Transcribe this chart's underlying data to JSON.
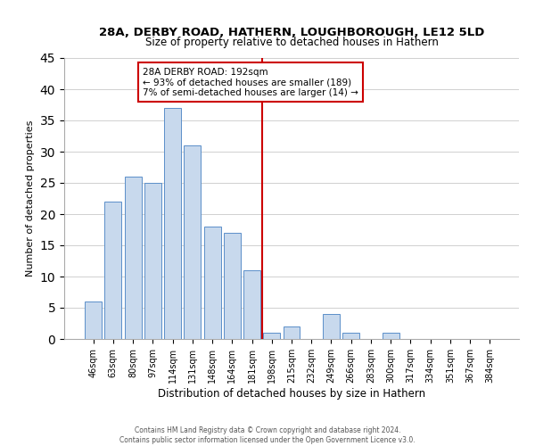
{
  "title": "28A, DERBY ROAD, HATHERN, LOUGHBOROUGH, LE12 5LD",
  "subtitle": "Size of property relative to detached houses in Hathern",
  "xlabel": "Distribution of detached houses by size in Hathern",
  "ylabel": "Number of detached properties",
  "bin_labels": [
    "46sqm",
    "63sqm",
    "80sqm",
    "97sqm",
    "114sqm",
    "131sqm",
    "148sqm",
    "164sqm",
    "181sqm",
    "198sqm",
    "215sqm",
    "232sqm",
    "249sqm",
    "266sqm",
    "283sqm",
    "300sqm",
    "317sqm",
    "334sqm",
    "351sqm",
    "367sqm",
    "384sqm"
  ],
  "bar_values": [
    6,
    22,
    26,
    25,
    37,
    31,
    18,
    17,
    11,
    1,
    2,
    0,
    4,
    1,
    0,
    1,
    0,
    0,
    0,
    0,
    0
  ],
  "bar_color": "#c8d9ed",
  "bar_edge_color": "#5b8fc9",
  "vline_color": "#cc0000",
  "annotation_title": "28A DERBY ROAD: 192sqm",
  "annotation_line1": "← 93% of detached houses are smaller (189)",
  "annotation_line2": "7% of semi-detached houses are larger (14) →",
  "annotation_box_color": "#ffffff",
  "annotation_box_edge": "#cc0000",
  "ylim": [
    0,
    45
  ],
  "yticks": [
    0,
    5,
    10,
    15,
    20,
    25,
    30,
    35,
    40,
    45
  ],
  "grid_color": "#d0d0d0",
  "footer1": "Contains HM Land Registry data © Crown copyright and database right 2024.",
  "footer2": "Contains public sector information licensed under the Open Government Licence v3.0."
}
